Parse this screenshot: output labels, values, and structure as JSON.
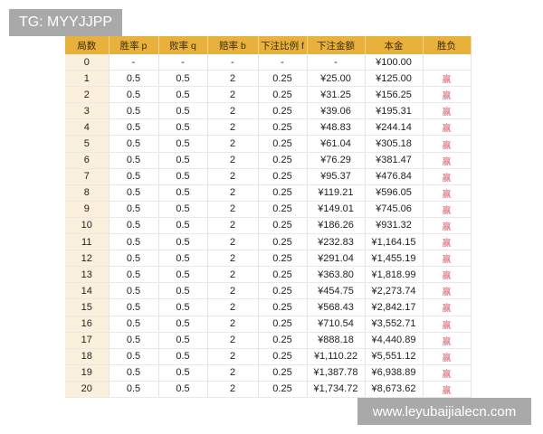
{
  "watermarks": {
    "top_left": "TG: MYYJJPP",
    "bottom_right": "www.leyubaijialecn.com"
  },
  "table": {
    "headers": [
      "局数",
      "胜率 p",
      "败率 q",
      "赔率 b",
      "下注比例 f",
      "下注金额",
      "本金",
      "胜负"
    ],
    "rows": [
      [
        "0",
        "-",
        "-",
        "-",
        "-",
        "-",
        "¥100.00",
        ""
      ],
      [
        "1",
        "0.5",
        "0.5",
        "2",
        "0.25",
        "¥25.00",
        "¥125.00",
        "赢"
      ],
      [
        "2",
        "0.5",
        "0.5",
        "2",
        "0.25",
        "¥31.25",
        "¥156.25",
        "赢"
      ],
      [
        "3",
        "0.5",
        "0.5",
        "2",
        "0.25",
        "¥39.06",
        "¥195.31",
        "赢"
      ],
      [
        "4",
        "0.5",
        "0.5",
        "2",
        "0.25",
        "¥48.83",
        "¥244.14",
        "赢"
      ],
      [
        "5",
        "0.5",
        "0.5",
        "2",
        "0.25",
        "¥61.04",
        "¥305.18",
        "赢"
      ],
      [
        "6",
        "0.5",
        "0.5",
        "2",
        "0.25",
        "¥76.29",
        "¥381.47",
        "赢"
      ],
      [
        "7",
        "0.5",
        "0.5",
        "2",
        "0.25",
        "¥95.37",
        "¥476.84",
        "赢"
      ],
      [
        "8",
        "0.5",
        "0.5",
        "2",
        "0.25",
        "¥119.21",
        "¥596.05",
        "赢"
      ],
      [
        "9",
        "0.5",
        "0.5",
        "2",
        "0.25",
        "¥149.01",
        "¥745.06",
        "赢"
      ],
      [
        "10",
        "0.5",
        "0.5",
        "2",
        "0.25",
        "¥186.26",
        "¥931.32",
        "赢"
      ],
      [
        "11",
        "0.5",
        "0.5",
        "2",
        "0.25",
        "¥232.83",
        "¥1,164.15",
        "赢"
      ],
      [
        "12",
        "0.5",
        "0.5",
        "2",
        "0.25",
        "¥291.04",
        "¥1,455.19",
        "赢"
      ],
      [
        "13",
        "0.5",
        "0.5",
        "2",
        "0.25",
        "¥363.80",
        "¥1,818.99",
        "赢"
      ],
      [
        "14",
        "0.5",
        "0.5",
        "2",
        "0.25",
        "¥454.75",
        "¥2,273.74",
        "赢"
      ],
      [
        "15",
        "0.5",
        "0.5",
        "2",
        "0.25",
        "¥568.43",
        "¥2,842.17",
        "赢"
      ],
      [
        "16",
        "0.5",
        "0.5",
        "2",
        "0.25",
        "¥710.54",
        "¥3,552.71",
        "赢"
      ],
      [
        "17",
        "0.5",
        "0.5",
        "2",
        "0.25",
        "¥888.18",
        "¥4,440.89",
        "赢"
      ],
      [
        "18",
        "0.5",
        "0.5",
        "2",
        "0.25",
        "¥1,110.22",
        "¥5,551.12",
        "赢"
      ],
      [
        "19",
        "0.5",
        "0.5",
        "2",
        "0.25",
        "¥1,387.78",
        "¥6,938.89",
        "赢"
      ],
      [
        "20",
        "0.5",
        "0.5",
        "2",
        "0.25",
        "¥1,734.72",
        "¥8,673.62",
        "赢"
      ]
    ]
  },
  "colors": {
    "header_bg": "#e8b13c",
    "index_bg": "#fbf0dc",
    "win_text": "#d9606a"
  }
}
